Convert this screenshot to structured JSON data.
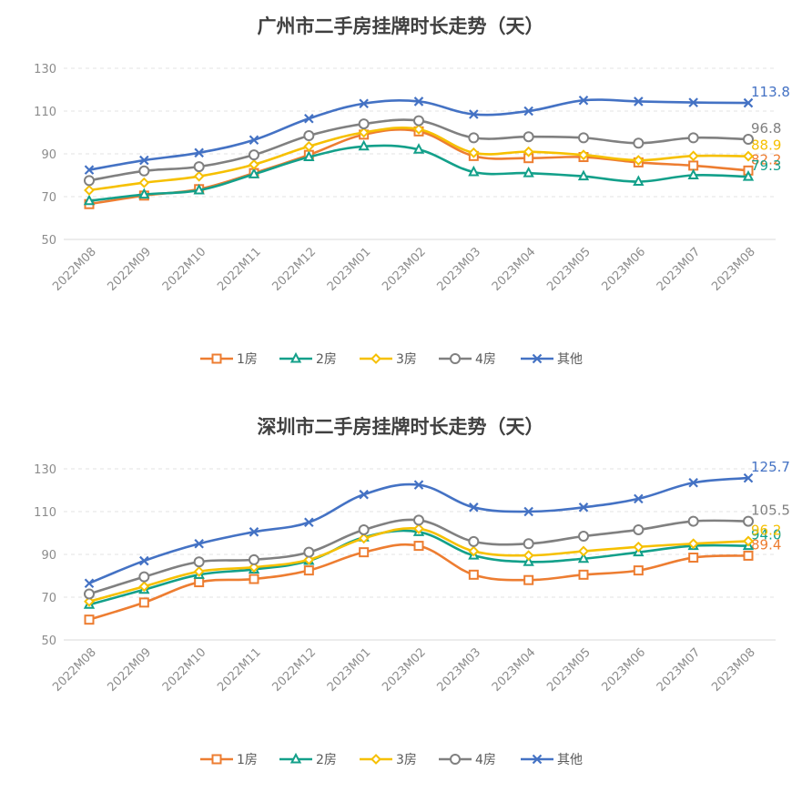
{
  "chart_data": [
    {
      "type": "line",
      "title": "广州市二手房挂牌时长走势（天）",
      "xlabel": "",
      "ylabel": "",
      "ylim": [
        50,
        130
      ],
      "yticks": [
        "50",
        "70",
        "90",
        "110",
        "130"
      ],
      "grid": true,
      "legend": "bottom",
      "categories": [
        "2022M08",
        "2022M09",
        "2022M10",
        "2022M11",
        "2022M12",
        "2023M01",
        "2023M02",
        "2023M03",
        "2023M04",
        "2023M05",
        "2023M06",
        "2023M07",
        "2023M08"
      ],
      "series": [
        {
          "name": "1房",
          "color": "#ed7d31",
          "marker": "square",
          "values": [
            66.5,
            70.5,
            73.5,
            81.0,
            89.5,
            99.0,
            100.5,
            89.0,
            88.0,
            88.5,
            86.0,
            84.5,
            82.2
          ],
          "end_label": "82.2"
        },
        {
          "name": "2房",
          "color": "#13a08a",
          "marker": "triangle",
          "values": [
            68.0,
            71.0,
            73.0,
            80.5,
            88.5,
            93.5,
            92.0,
            81.5,
            81.0,
            79.5,
            77.0,
            80.0,
            79.3
          ],
          "end_label": "79.3"
        },
        {
          "name": "3房",
          "color": "#f6c000",
          "marker": "diamond",
          "values": [
            73.0,
            76.5,
            79.5,
            85.0,
            93.5,
            100.0,
            101.5,
            90.5,
            91.0,
            89.5,
            87.0,
            89.0,
            88.9
          ],
          "end_label": "88.9"
        },
        {
          "name": "4房",
          "color": "#808080",
          "marker": "circle",
          "values": [
            77.5,
            82.0,
            84.0,
            89.5,
            98.5,
            104.0,
            105.5,
            97.5,
            98.0,
            97.5,
            95.0,
            97.5,
            96.8
          ],
          "end_label": "96.8"
        },
        {
          "name": "其他",
          "color": "#4472c4",
          "marker": "x",
          "values": [
            82.5,
            87.0,
            90.5,
            96.5,
            106.5,
            113.5,
            114.5,
            108.5,
            110.0,
            115.0,
            114.5,
            114.0,
            113.8
          ],
          "end_label": "113.8"
        }
      ]
    },
    {
      "type": "line",
      "title": "深圳市二手房挂牌时长走势（天）",
      "xlabel": "",
      "ylabel": "",
      "ylim": [
        50,
        130
      ],
      "yticks": [
        "50",
        "70",
        "90",
        "110",
        "130"
      ],
      "grid": true,
      "legend": "bottom",
      "categories": [
        "2022M08",
        "2022M09",
        "2022M10",
        "2022M11",
        "2022M12",
        "2023M01",
        "2023M02",
        "2023M03",
        "2023M04",
        "2023M05",
        "2023M06",
        "2023M07",
        "2023M08"
      ],
      "series": [
        {
          "name": "1房",
          "color": "#ed7d31",
          "marker": "square",
          "values": [
            59.5,
            67.5,
            77.0,
            78.5,
            82.5,
            91.0,
            94.0,
            80.5,
            78.0,
            80.5,
            82.5,
            88.5,
            89.4
          ],
          "end_label": "89.4"
        },
        {
          "name": "2房",
          "color": "#13a08a",
          "marker": "triangle",
          "values": [
            66.5,
            73.5,
            80.5,
            83.0,
            87.0,
            98.0,
            100.5,
            89.5,
            86.5,
            88.0,
            91.0,
            94.0,
            94.0
          ],
          "end_label": "94.0"
        },
        {
          "name": "3房",
          "color": "#f6c000",
          "marker": "diamond",
          "values": [
            68.0,
            75.0,
            82.0,
            84.0,
            87.5,
            97.5,
            102.0,
            91.5,
            89.5,
            91.5,
            93.5,
            95.0,
            96.2
          ],
          "end_label": "96.2"
        },
        {
          "name": "4房",
          "color": "#808080",
          "marker": "circle",
          "values": [
            71.5,
            79.5,
            86.5,
            87.5,
            91.0,
            101.5,
            106.0,
            96.0,
            95.0,
            98.5,
            101.5,
            105.5,
            105.5
          ],
          "end_label": "105.5"
        },
        {
          "name": "其他",
          "color": "#4472c4",
          "marker": "x",
          "values": [
            76.5,
            87.0,
            95.0,
            100.5,
            105.0,
            118.0,
            122.5,
            112.0,
            110.0,
            112.0,
            116.0,
            123.5,
            125.7
          ],
          "end_label": "125.7"
        }
      ]
    }
  ]
}
